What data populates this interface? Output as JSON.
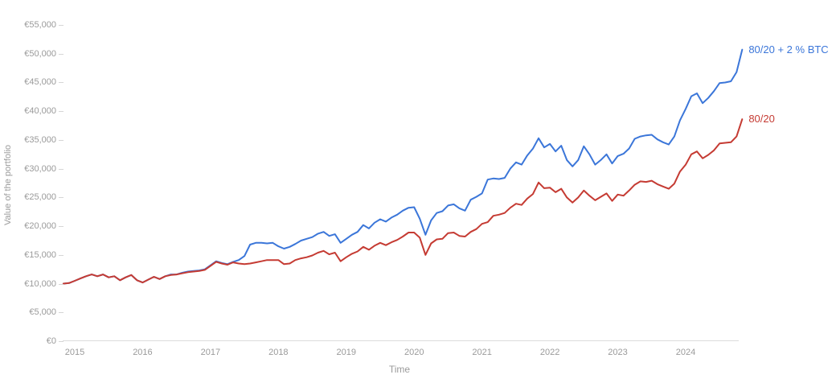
{
  "chart_data": {
    "type": "line",
    "title": "",
    "xlabel": "Time",
    "ylabel": "Value of the portfolio",
    "ylim": [
      0,
      55000
    ],
    "x_start": "2014-11",
    "x_interval": "monthly",
    "grid": "off",
    "legend_position": "labels-at-line-ends",
    "x_tick_years": [
      "2015",
      "2016",
      "2017",
      "2018",
      "2019",
      "2020",
      "2021",
      "2022",
      "2023",
      "2024"
    ],
    "y_tick_values": [
      0,
      5000,
      10000,
      15000,
      20000,
      25000,
      30000,
      35000,
      40000,
      45000,
      50000,
      55000
    ],
    "y_tick_labels": [
      "€0",
      "€5,000",
      "€10,000",
      "€15,000",
      "€20,000",
      "€25,000",
      "€30,000",
      "€35,000",
      "€40,000",
      "€45,000",
      "€50,000",
      "€55,000"
    ],
    "axis_line_color": "#dcdcdc",
    "tick_text_color": "#9a9a9a",
    "series": [
      {
        "name": "80/20 + 2 % BTC",
        "color": "#3b76d9",
        "values": [
          10000,
          10100,
          10500,
          10900,
          11300,
          11600,
          11300,
          11600,
          11100,
          11300,
          10600,
          11100,
          11500,
          10600,
          10200,
          10700,
          11200,
          10800,
          11300,
          11600,
          11600,
          11900,
          12100,
          12200,
          12300,
          12500,
          13200,
          13900,
          13600,
          13400,
          13800,
          14100,
          14800,
          16800,
          17100,
          17100,
          17000,
          17100,
          16500,
          16100,
          16400,
          16900,
          17500,
          17800,
          18100,
          18700,
          19000,
          18300,
          18600,
          17100,
          17800,
          18500,
          19000,
          20200,
          19600,
          20600,
          21200,
          20800,
          21500,
          22000,
          22700,
          23200,
          23300,
          21300,
          18500,
          21000,
          22300,
          22600,
          23600,
          23800,
          23100,
          22700,
          24600,
          25100,
          25700,
          28100,
          28300,
          28200,
          28400,
          30000,
          31100,
          30700,
          32300,
          33500,
          35300,
          33700,
          34300,
          33000,
          34000,
          31500,
          30400,
          31500,
          33900,
          32500,
          30700,
          31500,
          32500,
          30900,
          32200,
          32600,
          33500,
          35200,
          35600,
          35800,
          35900,
          35100,
          34600,
          34200,
          35600,
          38400,
          40400,
          42600,
          43100,
          41400,
          42300,
          43500,
          44900,
          45000,
          45200,
          46800,
          50700
        ]
      },
      {
        "name": "80/20",
        "color": "#c53b33",
        "values": [
          10000,
          10100,
          10500,
          10900,
          11300,
          11600,
          11300,
          11600,
          11100,
          11300,
          10600,
          11100,
          11500,
          10600,
          10200,
          10700,
          11200,
          10800,
          11300,
          11500,
          11600,
          11800,
          12000,
          12100,
          12200,
          12400,
          13100,
          13800,
          13500,
          13300,
          13700,
          13500,
          13400,
          13500,
          13700,
          13900,
          14100,
          14100,
          14100,
          13400,
          13500,
          14100,
          14400,
          14600,
          14900,
          15400,
          15700,
          15100,
          15400,
          13900,
          14600,
          15200,
          15600,
          16400,
          15900,
          16600,
          17100,
          16700,
          17200,
          17600,
          18200,
          18900,
          18900,
          18000,
          15000,
          17000,
          17700,
          17800,
          18800,
          18900,
          18300,
          18200,
          19000,
          19500,
          20400,
          20700,
          21800,
          22000,
          22300,
          23200,
          23900,
          23700,
          24800,
          25600,
          27600,
          26600,
          26700,
          25900,
          26500,
          25000,
          24100,
          25000,
          26200,
          25300,
          24500,
          25100,
          25700,
          24400,
          25500,
          25300,
          26200,
          27200,
          27800,
          27700,
          27900,
          27300,
          26900,
          26500,
          27400,
          29500,
          30700,
          32500,
          33000,
          31800,
          32400,
          33200,
          34400,
          34500,
          34600,
          35600,
          38600
        ]
      }
    ]
  }
}
